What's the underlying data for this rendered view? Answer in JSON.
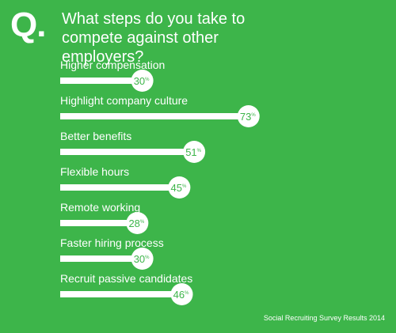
{
  "header": {
    "q_mark": "Q.",
    "question": "What steps do you take to compete against other employers?"
  },
  "footer": "Social Recruiting Survey Results 2014",
  "colors": {
    "background": "#3db54a",
    "bar": "#ffffff",
    "bubble_text": "#3db54a"
  },
  "chart_data": {
    "type": "bar",
    "orientation": "horizontal",
    "title": "What steps do you take to compete against other employers?",
    "categories": [
      "Higher compensation",
      "Highlight company culture",
      "Better benefits",
      "Flexible hours",
      "Remote working",
      "Faster hiring process",
      "Recruit passive candidates"
    ],
    "values": [
      30,
      73,
      51,
      45,
      28,
      30,
      46
    ],
    "unit": "%",
    "xlim": [
      0,
      100
    ],
    "grid": false,
    "legend": "none"
  }
}
